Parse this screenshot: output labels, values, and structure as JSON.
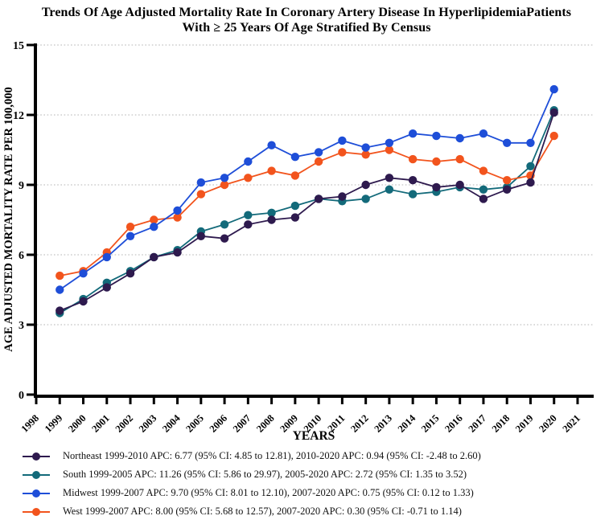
{
  "title": {
    "line1": "Trends Of Age Adjusted Mortality Rate In Coronary Artery Disease In HyperlipidemiaPatients",
    "line2": "With ≥ 25 Years Of Age Stratified By Census"
  },
  "chart_data": {
    "type": "line",
    "title": "Trends Of Age Adjusted Mortality Rate In Coronary Artery Disease In Hyperlipidemia Patients With ≥ 25 Years Of Age Stratified By Census",
    "xlabel": "YEARS",
    "ylabel": "AGE ADJUSTED MORTALITY RATE PER 100,000",
    "x_axis_ticks": [
      1998,
      1999,
      2000,
      2001,
      2002,
      2003,
      2004,
      2005,
      2006,
      2007,
      2008,
      2009,
      2010,
      2011,
      2012,
      2013,
      2014,
      2015,
      2016,
      2017,
      2018,
      2019,
      2020,
      2021
    ],
    "y_axis_ticks": [
      0,
      3,
      6,
      9,
      12,
      15
    ],
    "ylim": [
      0,
      15
    ],
    "grid": "horizontal dotted gridlines at 3,6,9,12,15",
    "legend_position": "below",
    "x": [
      1999,
      2000,
      2001,
      2002,
      2003,
      2004,
      2005,
      2006,
      2007,
      2008,
      2009,
      2010,
      2011,
      2012,
      2013,
      2014,
      2015,
      2016,
      2017,
      2018,
      2019,
      2020
    ],
    "series": [
      {
        "name": "Northeast",
        "color": "#2e1a4e",
        "legend_label": "Northeast 1999-2010 APC: 6.77 (95% CI: 4.85 to 12.81), 2010-2020 APC: 0.94 (95% CI: -2.48 to 2.60)",
        "values": [
          3.6,
          4.0,
          4.6,
          5.2,
          5.9,
          6.1,
          6.8,
          6.7,
          7.3,
          7.5,
          7.6,
          8.4,
          8.5,
          9.0,
          9.3,
          9.2,
          8.9,
          9.0,
          8.4,
          8.8,
          9.1,
          12.1
        ]
      },
      {
        "name": "South",
        "color": "#136a7a",
        "legend_label": "South 1999-2005 APC: 11.26 (95% CI: 5.86 to 29.97), 2005-2020 APC: 2.72 (95% CI: 1.35 to 3.52)",
        "values": [
          3.5,
          4.1,
          4.8,
          5.3,
          5.9,
          6.2,
          7.0,
          7.3,
          7.7,
          7.8,
          8.1,
          8.4,
          8.3,
          8.4,
          8.8,
          8.6,
          8.7,
          8.9,
          8.8,
          8.9,
          9.8,
          12.2
        ]
      },
      {
        "name": "Midwest",
        "color": "#1e4ed8",
        "legend_label": "Midwest 1999-2007 APC: 9.70 (95% CI: 8.01 to 12.10), 2007-2020 APC: 0.75 (95% CI: 0.12 to 1.33)",
        "values": [
          4.5,
          5.2,
          5.9,
          6.8,
          7.2,
          7.9,
          9.1,
          9.3,
          10.0,
          10.7,
          10.2,
          10.4,
          10.9,
          10.6,
          10.8,
          11.2,
          11.1,
          11.0,
          11.2,
          10.8,
          10.8,
          13.1
        ]
      },
      {
        "name": "West",
        "color": "#f2541d",
        "legend_label": "West 1999-2007 APC: 8.00 (95% CI: 5.68 to 12.57), 2007-2020 APC: 0.30 (95% CI: -0.71 to 1.14)",
        "values": [
          5.1,
          5.3,
          6.1,
          7.2,
          7.5,
          7.6,
          8.6,
          9.0,
          9.3,
          9.6,
          9.4,
          10.0,
          10.4,
          10.3,
          10.5,
          10.1,
          10.0,
          10.1,
          9.6,
          9.2,
          9.4,
          11.1
        ]
      }
    ]
  }
}
